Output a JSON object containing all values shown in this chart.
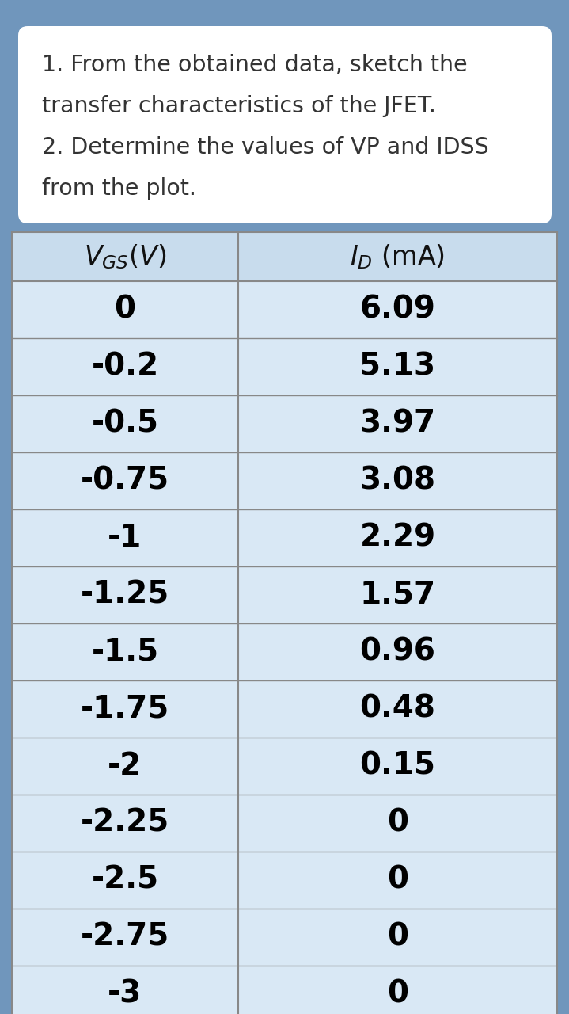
{
  "description_lines": [
    "1. From the obtained data, sketch the",
    "transfer characteristics of the JFET.",
    "2. Determine the values of VP and IDSS",
    "from the plot."
  ],
  "vgs_values": [
    "0",
    "-0.2",
    "-0.5",
    "-0.75",
    "-1",
    "-1.25",
    "-1.5",
    "-1.75",
    "-2",
    "-2.25",
    "-2.5",
    "-2.75",
    "-3"
  ],
  "id_values": [
    "6.09",
    "5.13",
    "3.97",
    "3.08",
    "2.29",
    "1.57",
    "0.96",
    "0.48",
    "0.15",
    "0",
    "0",
    "0",
    "0"
  ],
  "background_color": "#7096bc",
  "table_bg_light": "#d9e8f5",
  "table_header_bg": "#c8dced",
  "table_line_color": "#888888",
  "text_box_bg": "#ffffff",
  "text_color": "#333333",
  "header_text_color": "#111111",
  "data_text_color": "#000000"
}
